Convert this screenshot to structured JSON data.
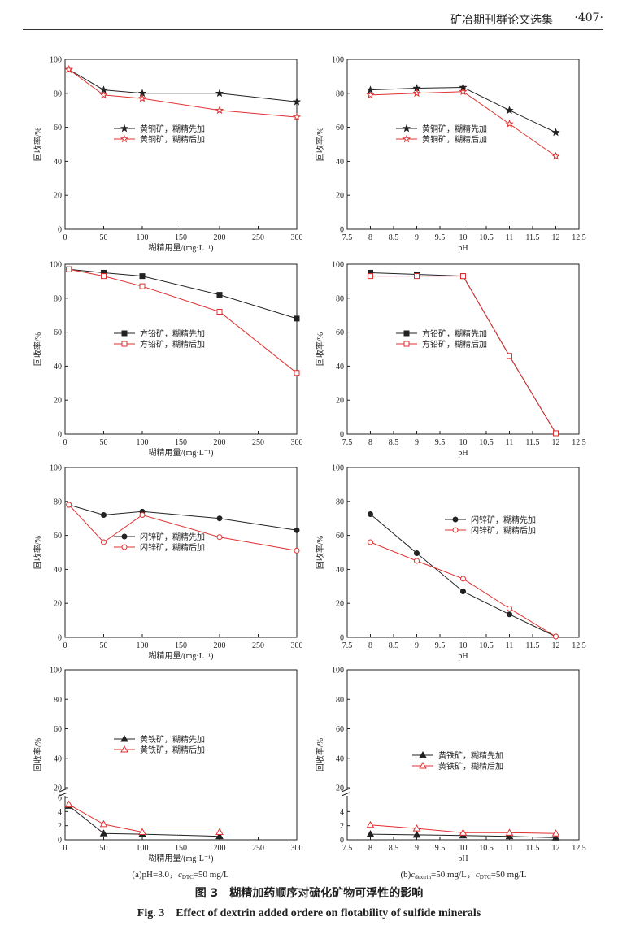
{
  "header": {
    "journal": "矿冶期刊群论文选集",
    "page": "·407·"
  },
  "figure": {
    "caption_cn": "图 3　糊精加药顺序对硫化矿物可浮性的影响",
    "caption_en": "Fig. 3　Effect of dextrin added ordere on flotability of sulfide minerals",
    "sub_a": "(a)pH=8.0，cDTC=50 mg/L",
    "sub_b": "(b)cdextrin=50 mg/L，cDTC=50 mg/L"
  },
  "chart_data": [
    {
      "id": "chalco-dose",
      "type": "line",
      "xlabel": "糊精用量/(mg·L⁻¹)",
      "ylabel": "回收率/%",
      "xlim": [
        0,
        300
      ],
      "ylim": [
        0,
        100
      ],
      "xticks": [
        0,
        50,
        100,
        150,
        200,
        250,
        300
      ],
      "yticks": [
        0,
        20,
        40,
        60,
        80,
        100
      ],
      "legend": "center-left",
      "series": [
        {
          "name": "黄铜矿，糊精先加",
          "marker": "star-filled",
          "color": "#222222",
          "x": [
            5,
            50,
            100,
            200,
            300
          ],
          "y": [
            94,
            82,
            80,
            80,
            75
          ]
        },
        {
          "name": "黄铜矿，糊精后加",
          "marker": "star-open",
          "color": "#e03030",
          "x": [
            5,
            50,
            100,
            200,
            300
          ],
          "y": [
            94,
            79,
            77,
            70,
            66
          ]
        }
      ]
    },
    {
      "id": "chalco-ph",
      "type": "line",
      "xlabel": "pH",
      "ylabel": "回收率/%",
      "xlim": [
        7.5,
        12.5
      ],
      "ylim": [
        0,
        100
      ],
      "xticks": [
        7.5,
        8,
        8.5,
        9,
        9.5,
        10,
        10.5,
        11,
        11.5,
        12,
        12.5
      ],
      "yticks": [
        0,
        20,
        40,
        60,
        80,
        100
      ],
      "legend": "center-left",
      "series": [
        {
          "name": "黄铜矿，糊精先加",
          "marker": "star-filled",
          "color": "#222222",
          "x": [
            8,
            9,
            10,
            11,
            12
          ],
          "y": [
            82,
            83,
            83.5,
            70,
            57
          ]
        },
        {
          "name": "黄铜矿，糊精后加",
          "marker": "star-open",
          "color": "#e03030",
          "x": [
            8,
            9,
            10,
            11,
            12
          ],
          "y": [
            79,
            80,
            81,
            62,
            43
          ]
        }
      ]
    },
    {
      "id": "galena-dose",
      "type": "line",
      "xlabel": "糊精用量/(mg·L⁻¹)",
      "ylabel": "回收率/%",
      "xlim": [
        0,
        300
      ],
      "ylim": [
        0,
        100
      ],
      "xticks": [
        0,
        50,
        100,
        150,
        200,
        250,
        300
      ],
      "yticks": [
        0,
        20,
        40,
        60,
        80,
        100
      ],
      "legend": "center-left",
      "series": [
        {
          "name": "方铅矿，糊精先加",
          "marker": "square-filled",
          "color": "#222222",
          "x": [
            5,
            50,
            100,
            200,
            300
          ],
          "y": [
            97,
            95,
            93,
            82,
            68
          ]
        },
        {
          "name": "方铅矿，糊精后加",
          "marker": "square-open",
          "color": "#e03030",
          "x": [
            5,
            50,
            100,
            200,
            300
          ],
          "y": [
            97,
            93,
            87,
            72,
            36
          ]
        }
      ]
    },
    {
      "id": "galena-ph",
      "type": "line",
      "xlabel": "pH",
      "ylabel": "回收率/%",
      "xlim": [
        7.5,
        12.5
      ],
      "ylim": [
        0,
        100
      ],
      "xticks": [
        7.5,
        8,
        8.5,
        9,
        9.5,
        10,
        10.5,
        11,
        11.5,
        12,
        12.5
      ],
      "yticks": [
        0,
        20,
        40,
        60,
        80,
        100
      ],
      "legend": "center-left",
      "series": [
        {
          "name": "方铅矿，糊精先加",
          "marker": "square-filled",
          "color": "#222222",
          "x": [
            8,
            9,
            10,
            11,
            12
          ],
          "y": [
            95,
            94,
            93,
            46,
            0.5
          ]
        },
        {
          "name": "方铅矿，糊精后加",
          "marker": "square-open",
          "color": "#e03030",
          "x": [
            8,
            9,
            10,
            11,
            12
          ],
          "y": [
            93,
            93,
            93,
            46,
            0.5
          ]
        }
      ]
    },
    {
      "id": "sphal-dose",
      "type": "line",
      "xlabel": "糊精用量/(mg·L⁻¹)",
      "ylabel": "回收率/%",
      "xlim": [
        0,
        300
      ],
      "ylim": [
        0,
        100
      ],
      "xticks": [
        0,
        50,
        100,
        150,
        200,
        250,
        300
      ],
      "yticks": [
        0,
        20,
        40,
        60,
        80,
        100
      ],
      "legend": "center-left",
      "series": [
        {
          "name": "闪锌矿，糊精先加",
          "marker": "circle-filled",
          "color": "#222222",
          "x": [
            5,
            50,
            100,
            200,
            300
          ],
          "y": [
            78,
            72,
            74,
            70,
            63
          ]
        },
        {
          "name": "闪锌矿，糊精后加",
          "marker": "circle-open",
          "color": "#e03030",
          "x": [
            5,
            50,
            100,
            200,
            300
          ],
          "y": [
            78,
            56,
            72,
            59,
            51
          ]
        }
      ]
    },
    {
      "id": "sphal-ph",
      "type": "line",
      "xlabel": "pH",
      "ylabel": "回收率/%",
      "xlim": [
        7.5,
        12.5
      ],
      "ylim": [
        0,
        100
      ],
      "xticks": [
        7.5,
        8,
        8.5,
        9,
        9.5,
        10,
        10.5,
        11,
        11.5,
        12,
        12.5
      ],
      "yticks": [
        0,
        20,
        40,
        60,
        80,
        100
      ],
      "legend": "top-right",
      "series": [
        {
          "name": "闪锌矿，糊精先加",
          "marker": "circle-filled",
          "color": "#222222",
          "x": [
            8,
            9,
            10,
            11,
            12
          ],
          "y": [
            72.5,
            49.5,
            27,
            13.5,
            0.5
          ]
        },
        {
          "name": "闪锌矿，糊精后加",
          "marker": "circle-open",
          "color": "#e03030",
          "x": [
            8,
            9,
            10,
            11,
            12
          ],
          "y": [
            56,
            45,
            34.5,
            17,
            0.5
          ]
        }
      ]
    },
    {
      "id": "pyrite-dose",
      "type": "line",
      "xlabel": "糊精用量/(mg·L⁻¹)",
      "ylabel": "回收率/%",
      "xlim": [
        0,
        300
      ],
      "ylim": [
        0,
        100
      ],
      "xticks": [
        0,
        50,
        100,
        150,
        200,
        250,
        300
      ],
      "yticks": [
        0,
        2,
        4,
        6,
        20,
        40,
        60,
        80,
        100
      ],
      "broken_axis": true,
      "legend": "center-left",
      "series": [
        {
          "name": "黄铁矿，糊精先加",
          "marker": "triangle-filled",
          "color": "#222222",
          "x": [
            5,
            50,
            100,
            200
          ],
          "y": [
            4.8,
            0.9,
            0.8,
            0.5
          ]
        },
        {
          "name": "黄铁矿，糊精后加",
          "marker": "triangle-open",
          "color": "#e03030",
          "x": [
            5,
            50,
            100,
            200
          ],
          "y": [
            5,
            2.2,
            1.1,
            1.1
          ]
        }
      ]
    },
    {
      "id": "pyrite-ph",
      "type": "line",
      "xlabel": "pH",
      "ylabel": "回收率/%",
      "xlim": [
        7.5,
        12.5
      ],
      "ylim": [
        0,
        100
      ],
      "xticks": [
        7.5,
        8,
        8.5,
        9,
        9.5,
        10,
        10.5,
        11,
        11.5,
        12,
        12.5
      ],
      "yticks": [
        0,
        2,
        4,
        20,
        40,
        60,
        80,
        100
      ],
      "broken_axis": true,
      "legend": "center-right",
      "series": [
        {
          "name": "黄铁矿，糊精先加",
          "marker": "triangle-filled",
          "color": "#222222",
          "x": [
            8,
            9,
            10,
            11,
            12
          ],
          "y": [
            0.8,
            0.7,
            0.6,
            0.5,
            0.3
          ]
        },
        {
          "name": "黄铁矿，糊精后加",
          "marker": "triangle-open",
          "color": "#e03030",
          "x": [
            8,
            9,
            10,
            11,
            12
          ],
          "y": [
            2.1,
            1.6,
            1,
            1,
            0.9
          ]
        }
      ]
    }
  ]
}
